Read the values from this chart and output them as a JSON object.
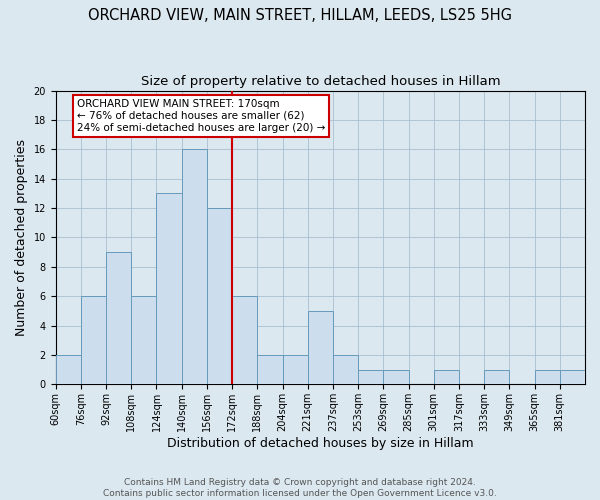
{
  "title": "ORCHARD VIEW, MAIN STREET, HILLAM, LEEDS, LS25 5HG",
  "subtitle": "Size of property relative to detached houses in Hillam",
  "xlabel": "Distribution of detached houses by size in Hillam",
  "ylabel": "Number of detached properties",
  "bin_labels": [
    "60sqm",
    "76sqm",
    "92sqm",
    "108sqm",
    "124sqm",
    "140sqm",
    "156sqm",
    "172sqm",
    "188sqm",
    "204sqm",
    "221sqm",
    "237sqm",
    "253sqm",
    "269sqm",
    "285sqm",
    "301sqm",
    "317sqm",
    "333sqm",
    "349sqm",
    "365sqm",
    "381sqm"
  ],
  "counts": [
    2,
    6,
    9,
    6,
    13,
    16,
    12,
    6,
    2,
    2,
    5,
    2,
    1,
    1,
    0,
    1,
    0,
    1,
    0,
    1,
    1
  ],
  "bar_color": "#ccdded",
  "bar_edge_color": "#6699bb",
  "reference_line_index": 7,
  "reference_line_color": "#cc0000",
  "annotation_text": "ORCHARD VIEW MAIN STREET: 170sqm\n← 76% of detached houses are smaller (62)\n24% of semi-detached houses are larger (20) →",
  "annotation_box_color": "#ffffff",
  "annotation_box_edge_color": "#cc0000",
  "ylim": [
    0,
    20
  ],
  "yticks": [
    0,
    2,
    4,
    6,
    8,
    10,
    12,
    14,
    16,
    18,
    20
  ],
  "grid_color": "#aabfcf",
  "background_color": "#dce8f0",
  "footer_text": "Contains HM Land Registry data © Crown copyright and database right 2024.\nContains public sector information licensed under the Open Government Licence v3.0.",
  "title_fontsize": 10.5,
  "subtitle_fontsize": 9.5,
  "axis_label_fontsize": 9,
  "tick_fontsize": 7,
  "annotation_fontsize": 7.5,
  "footer_fontsize": 6.5
}
